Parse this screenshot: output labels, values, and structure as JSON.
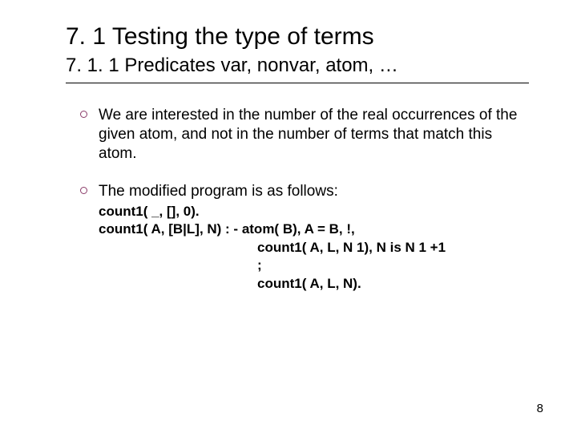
{
  "title": "7. 1 Testing the type of terms",
  "subtitle": "7. 1. 1 Predicates var, nonvar, atom, …",
  "bullets": {
    "b1": "We are interested in the number of the real occurrences of the given atom, and not in the number of terms that match this atom.",
    "b2": "The modified program is as follows:"
  },
  "code": {
    "l1": "count1( _, [], 0).",
    "l2_pre": "count1( A, [B|L], N) ",
    "l2_op": ": -",
    "l2_post": " atom( B), A = B, !,",
    "l3": "count1( A, L, N 1), N is N 1 +1",
    "l4": ";",
    "l5": "count1( A, L, N)."
  },
  "page_number": "8",
  "colors": {
    "bullet_ring": "#8a3a68",
    "text": "#000000",
    "background": "#ffffff"
  }
}
